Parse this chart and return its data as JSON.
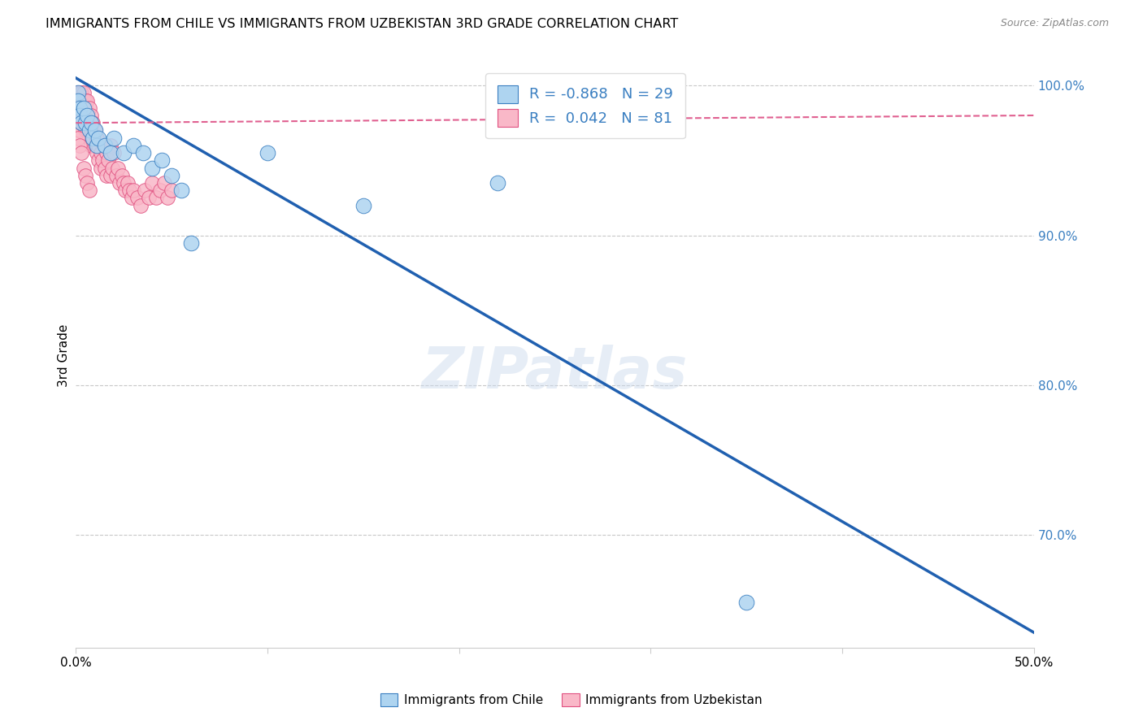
{
  "title": "IMMIGRANTS FROM CHILE VS IMMIGRANTS FROM UZBEKISTAN 3RD GRADE CORRELATION CHART",
  "source": "Source: ZipAtlas.com",
  "ylabel": "3rd Grade",
  "x_min": 0.0,
  "x_max": 0.5,
  "y_min": 0.625,
  "y_max": 1.015,
  "x_ticks": [
    0.0,
    0.1,
    0.2,
    0.3,
    0.4,
    0.5
  ],
  "x_tick_labels": [
    "0.0%",
    "",
    "",
    "",
    "",
    "50.0%"
  ],
  "y_ticks_right": [
    1.0,
    0.9,
    0.8,
    0.7
  ],
  "y_tick_labels_right": [
    "100.0%",
    "90.0%",
    "80.0%",
    "70.0%"
  ],
  "grid_color": "#c8c8c8",
  "chile_color": "#aed4f0",
  "chile_edge_color": "#3a7fc1",
  "uzbekistan_color": "#f9b8c8",
  "uzbekistan_edge_color": "#e05080",
  "chile_line_color": "#2060b0",
  "uzbekistan_line_color": "#e06090",
  "chile_R": -0.868,
  "chile_N": 29,
  "uzbekistan_R": 0.042,
  "uzbekistan_N": 81,
  "legend_chile": "Immigrants from Chile",
  "legend_uzbekistan": "Immigrants from Uzbekistan",
  "watermark": "ZIPatlas",
  "chile_line_x0": 0.0,
  "chile_line_y0": 1.005,
  "chile_line_x1": 0.5,
  "chile_line_y1": 0.635,
  "uzbekistan_line_x0": 0.0,
  "uzbekistan_line_y0": 0.975,
  "uzbekistan_line_x1": 0.5,
  "uzbekistan_line_y1": 0.98,
  "chile_scatter_x": [
    0.001,
    0.001,
    0.002,
    0.002,
    0.003,
    0.004,
    0.005,
    0.006,
    0.007,
    0.008,
    0.009,
    0.01,
    0.011,
    0.012,
    0.015,
    0.018,
    0.02,
    0.025,
    0.03,
    0.035,
    0.04,
    0.045,
    0.05,
    0.055,
    0.06,
    0.1,
    0.15,
    0.22,
    0.35
  ],
  "chile_scatter_y": [
    0.995,
    0.99,
    0.985,
    0.98,
    0.975,
    0.985,
    0.975,
    0.98,
    0.97,
    0.975,
    0.965,
    0.97,
    0.96,
    0.965,
    0.96,
    0.955,
    0.965,
    0.955,
    0.96,
    0.955,
    0.945,
    0.95,
    0.94,
    0.93,
    0.895,
    0.955,
    0.92,
    0.935,
    0.655
  ],
  "uzbekistan_scatter_x": [
    0.001,
    0.001,
    0.001,
    0.001,
    0.001,
    0.001,
    0.002,
    0.002,
    0.002,
    0.002,
    0.002,
    0.002,
    0.003,
    0.003,
    0.003,
    0.003,
    0.003,
    0.004,
    0.004,
    0.004,
    0.004,
    0.005,
    0.005,
    0.005,
    0.005,
    0.006,
    0.006,
    0.006,
    0.007,
    0.007,
    0.007,
    0.008,
    0.008,
    0.008,
    0.009,
    0.009,
    0.01,
    0.01,
    0.011,
    0.011,
    0.012,
    0.012,
    0.013,
    0.013,
    0.014,
    0.015,
    0.015,
    0.016,
    0.016,
    0.017,
    0.018,
    0.018,
    0.019,
    0.02,
    0.021,
    0.022,
    0.023,
    0.024,
    0.025,
    0.026,
    0.027,
    0.028,
    0.029,
    0.03,
    0.032,
    0.034,
    0.036,
    0.038,
    0.04,
    0.042,
    0.044,
    0.046,
    0.048,
    0.05,
    0.001,
    0.002,
    0.003,
    0.004,
    0.005,
    0.006,
    0.007
  ],
  "uzbekistan_scatter_y": [
    0.995,
    0.99,
    0.985,
    0.98,
    0.975,
    0.97,
    0.995,
    0.99,
    0.985,
    0.98,
    0.975,
    0.97,
    0.995,
    0.99,
    0.985,
    0.98,
    0.975,
    0.995,
    0.99,
    0.985,
    0.975,
    0.99,
    0.985,
    0.98,
    0.97,
    0.99,
    0.98,
    0.97,
    0.985,
    0.975,
    0.965,
    0.98,
    0.97,
    0.96,
    0.975,
    0.965,
    0.97,
    0.96,
    0.965,
    0.955,
    0.96,
    0.95,
    0.955,
    0.945,
    0.95,
    0.96,
    0.945,
    0.955,
    0.94,
    0.95,
    0.96,
    0.94,
    0.945,
    0.955,
    0.94,
    0.945,
    0.935,
    0.94,
    0.935,
    0.93,
    0.935,
    0.93,
    0.925,
    0.93,
    0.925,
    0.92,
    0.93,
    0.925,
    0.935,
    0.925,
    0.93,
    0.935,
    0.925,
    0.93,
    0.965,
    0.96,
    0.955,
    0.945,
    0.94,
    0.935,
    0.93
  ]
}
